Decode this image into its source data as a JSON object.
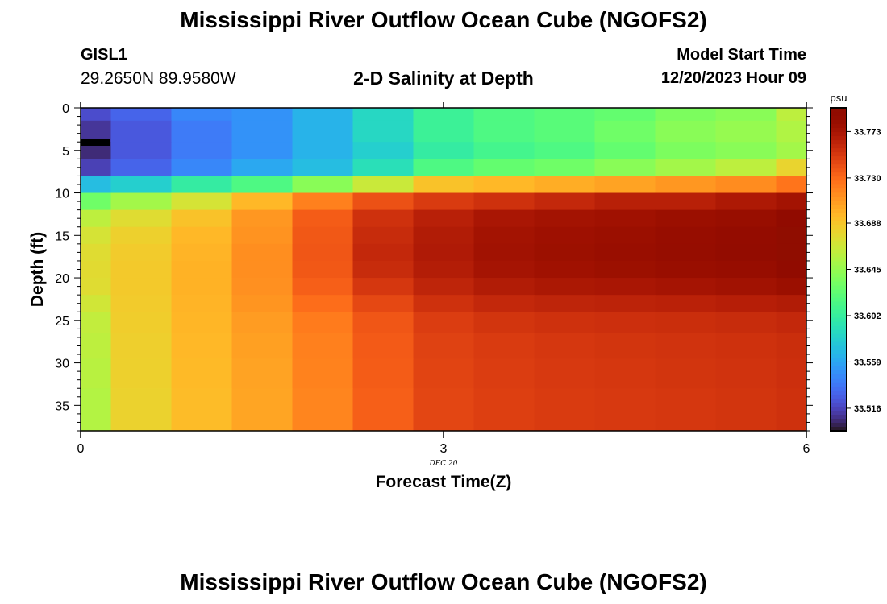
{
  "header": {
    "title": "Mississippi River Outflow Ocean Cube (NGOFS2)",
    "station": "GISL1",
    "coordinates": "29.2650N  89.9580W",
    "subtitle": "2-D Salinity at Depth",
    "model_start_label": "Model Start Time",
    "model_start_value": "12/20/2023 Hour 09"
  },
  "footer": {
    "title": "Mississippi River Outflow Ocean Cube (NGOFS2)"
  },
  "chart_data": {
    "type": "heatmap",
    "title": "2-D Salinity at Depth",
    "xlabel": "Forecast Time(Z)",
    "ylabel": "Depth (ft)",
    "x_ticks": [
      "0",
      "3",
      "6"
    ],
    "x_date_label": "DEC 20",
    "y_ticks": [
      "0",
      "5",
      "10",
      "15",
      "20",
      "25",
      "30",
      "35"
    ],
    "xlim": [
      0,
      6
    ],
    "ylim": [
      0,
      38
    ],
    "colorbar": {
      "unit": "psu",
      "ticks": [
        "33.773",
        "33.730",
        "33.688",
        "33.645",
        "33.602",
        "33.559",
        "33.516"
      ],
      "range": [
        33.495,
        33.795
      ],
      "colormap": "turbo"
    },
    "time_columns": [
      0,
      0.5,
      1.0,
      1.5,
      2.0,
      2.5,
      3.0,
      3.5,
      4.0,
      4.5,
      5.0,
      5.5,
      6.0
    ],
    "depth_rows": [
      {
        "depth": 0,
        "values": [
          33.52,
          33.53,
          33.545,
          33.55,
          33.565,
          33.585,
          33.605,
          33.615,
          33.62,
          33.625,
          33.635,
          33.64,
          33.66
        ]
      },
      {
        "depth": 3,
        "values": [
          33.51,
          33.525,
          33.54,
          33.55,
          33.565,
          33.585,
          33.605,
          33.615,
          33.62,
          33.63,
          33.64,
          33.645,
          33.655
        ]
      },
      {
        "depth": 5,
        "values": [
          33.505,
          33.525,
          33.54,
          33.55,
          33.565,
          33.58,
          33.6,
          33.61,
          33.615,
          33.625,
          33.635,
          33.64,
          33.65
        ]
      },
      {
        "depth": 7,
        "values": [
          33.515,
          33.53,
          33.545,
          33.56,
          33.57,
          33.59,
          33.615,
          33.625,
          33.63,
          33.64,
          33.65,
          33.66,
          33.68
        ]
      },
      {
        "depth": 9,
        "values": [
          33.57,
          33.58,
          33.6,
          33.615,
          33.64,
          33.665,
          33.69,
          33.695,
          33.7,
          33.705,
          33.71,
          33.715,
          33.725
        ]
      },
      {
        "depth": 11,
        "values": [
          33.63,
          33.65,
          33.67,
          33.695,
          33.72,
          33.74,
          33.75,
          33.755,
          33.76,
          33.765,
          33.765,
          33.77,
          33.775
        ]
      },
      {
        "depth": 13,
        "values": [
          33.66,
          33.675,
          33.69,
          33.71,
          33.735,
          33.755,
          33.765,
          33.772,
          33.775,
          33.777,
          33.78,
          33.782,
          33.79
        ]
      },
      {
        "depth": 15,
        "values": [
          33.67,
          33.682,
          33.695,
          33.712,
          33.737,
          33.758,
          33.768,
          33.775,
          33.778,
          33.78,
          33.783,
          33.785,
          33.8
        ]
      },
      {
        "depth": 17,
        "values": [
          33.675,
          33.685,
          33.697,
          33.714,
          33.738,
          33.76,
          33.769,
          33.776,
          33.779,
          33.781,
          33.784,
          33.787,
          33.8
        ]
      },
      {
        "depth": 19,
        "values": [
          33.676,
          33.686,
          33.698,
          33.714,
          33.737,
          33.758,
          33.767,
          33.774,
          33.777,
          33.779,
          33.781,
          33.783,
          33.79
        ]
      },
      {
        "depth": 21,
        "values": [
          33.675,
          33.686,
          33.698,
          33.713,
          33.734,
          33.752,
          33.762,
          33.768,
          33.771,
          33.772,
          33.774,
          33.776,
          33.78
        ]
      },
      {
        "depth": 23,
        "values": [
          33.668,
          33.685,
          33.697,
          33.711,
          33.728,
          33.744,
          33.755,
          33.76,
          33.762,
          33.763,
          33.764,
          33.766,
          33.768
        ]
      },
      {
        "depth": 25,
        "values": [
          33.662,
          33.684,
          33.696,
          33.708,
          33.722,
          33.738,
          33.749,
          33.753,
          33.755,
          33.756,
          33.757,
          33.758,
          33.76
        ]
      },
      {
        "depth": 28,
        "values": [
          33.66,
          33.683,
          33.695,
          33.706,
          33.72,
          33.736,
          33.747,
          33.75,
          33.752,
          33.753,
          33.754,
          33.755,
          33.757
        ]
      },
      {
        "depth": 31,
        "values": [
          33.658,
          33.682,
          33.694,
          33.705,
          33.719,
          33.735,
          33.746,
          33.749,
          33.751,
          33.752,
          33.753,
          33.754,
          33.756
        ]
      },
      {
        "depth": 35,
        "values": [
          33.656,
          33.681,
          33.693,
          33.704,
          33.718,
          33.734,
          33.745,
          33.748,
          33.75,
          33.751,
          33.752,
          33.753,
          33.755
        ]
      }
    ],
    "missing_cell": {
      "time": 0,
      "depth": 4
    }
  }
}
